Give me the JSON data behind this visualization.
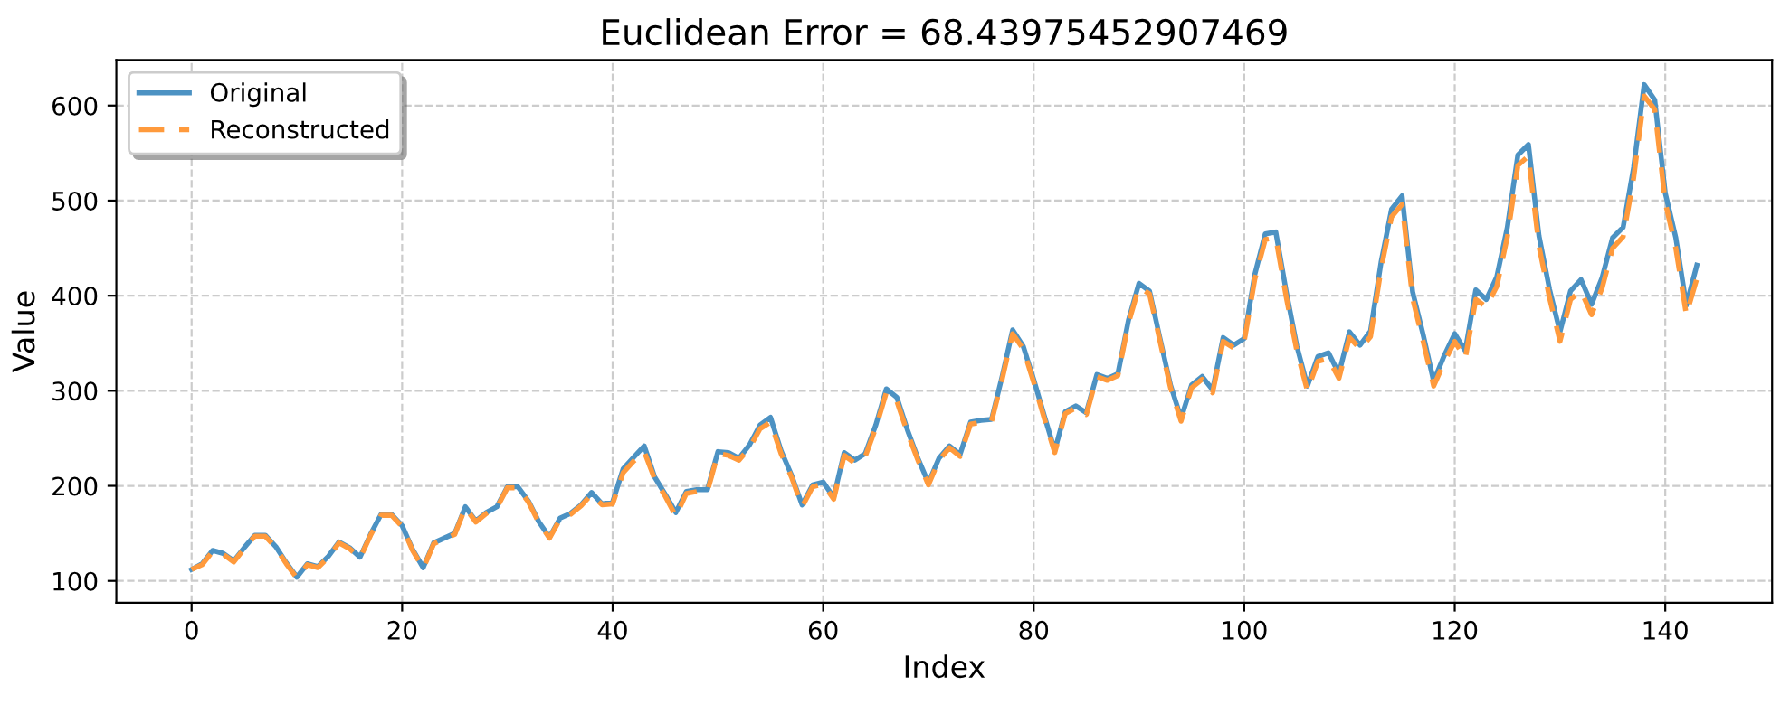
{
  "chart_data": {
    "type": "line",
    "title": "Euclidean Error = 68.43975452907469",
    "xlabel": "Index",
    "ylabel": "Value",
    "x": [
      0,
      1,
      2,
      3,
      4,
      5,
      6,
      7,
      8,
      9,
      10,
      11,
      12,
      13,
      14,
      15,
      16,
      17,
      18,
      19,
      20,
      21,
      22,
      23,
      24,
      25,
      26,
      27,
      28,
      29,
      30,
      31,
      32,
      33,
      34,
      35,
      36,
      37,
      38,
      39,
      40,
      41,
      42,
      43,
      44,
      45,
      46,
      47,
      48,
      49,
      50,
      51,
      52,
      53,
      54,
      55,
      56,
      57,
      58,
      59,
      60,
      61,
      62,
      63,
      64,
      65,
      66,
      67,
      68,
      69,
      70,
      71,
      72,
      73,
      74,
      75,
      76,
      77,
      78,
      79,
      80,
      81,
      82,
      83,
      84,
      85,
      86,
      87,
      88,
      89,
      90,
      91,
      92,
      93,
      94,
      95,
      96,
      97,
      98,
      99,
      100,
      101,
      102,
      103,
      104,
      105,
      106,
      107,
      108,
      109,
      110,
      111,
      112,
      113,
      114,
      115,
      116,
      117,
      118,
      119,
      120,
      121,
      122,
      123,
      124,
      125,
      126,
      127,
      128,
      129,
      130,
      131,
      132,
      133,
      134,
      135,
      136,
      137,
      138,
      139,
      140,
      141,
      142,
      143
    ],
    "series": [
      {
        "name": "Original",
        "color": "#4c92c3",
        "line_style": "solid",
        "values": [
          112,
          118,
          132,
          129,
          121,
          135,
          148,
          148,
          136,
          119,
          104,
          118,
          115,
          126,
          141,
          135,
          125,
          149,
          170,
          170,
          158,
          133,
          114,
          140,
          145,
          150,
          178,
          163,
          172,
          178,
          199,
          199,
          184,
          162,
          146,
          166,
          171,
          180,
          193,
          181,
          183,
          218,
          230,
          242,
          209,
          191,
          172,
          194,
          196,
          196,
          236,
          235,
          229,
          243,
          264,
          272,
          237,
          211,
          180,
          201,
          204,
          188,
          235,
          227,
          234,
          264,
          302,
          293,
          259,
          229,
          203,
          229,
          242,
          233,
          267,
          269,
          270,
          315,
          364,
          347,
          312,
          274,
          237,
          278,
          284,
          277,
          317,
          313,
          318,
          374,
          413,
          405,
          355,
          306,
          271,
          306,
          315,
          301,
          356,
          348,
          355,
          422,
          465,
          467,
          404,
          347,
          305,
          336,
          340,
          318,
          362,
          348,
          363,
          435,
          491,
          505,
          404,
          359,
          310,
          337,
          360,
          342,
          406,
          396,
          420,
          472,
          548,
          559,
          463,
          407,
          362,
          405,
          417,
          391,
          419,
          461,
          472,
          535,
          622,
          606,
          508,
          461,
          390,
          432
        ]
      },
      {
        "name": "Reconstructed",
        "color": "#ff9a3c",
        "line_style": "dashed",
        "values": [
          112,
          117,
          131,
          128,
          120,
          134,
          147,
          147,
          135,
          118,
          103,
          117,
          114,
          125,
          140,
          134,
          124,
          148,
          169,
          169,
          157,
          132,
          113,
          139,
          144,
          149,
          177,
          162,
          171,
          177,
          198,
          198,
          183,
          161,
          145,
          165,
          170,
          179,
          191,
          180,
          181,
          214,
          226,
          236,
          207,
          189,
          168,
          192,
          194,
          194,
          234,
          232,
          227,
          240,
          260,
          267,
          234,
          209,
          178,
          199,
          202,
          186,
          232,
          224,
          231,
          261,
          298,
          289,
          256,
          227,
          201,
          227,
          240,
          231,
          265,
          267,
          268,
          312,
          360,
          344,
          309,
          271,
          235,
          276,
          282,
          275,
          315,
          311,
          316,
          371,
          409,
          402,
          352,
          303,
          268,
          303,
          312,
          298,
          352,
          345,
          352,
          417,
          459,
          461,
          398,
          342,
          300,
          331,
          334,
          313,
          356,
          344,
          357,
          428,
          483,
          496,
          397,
          352,
          305,
          330,
          352,
          334,
          396,
          388,
          410,
          462,
          537,
          547,
          452,
          398,
          352,
          396,
          405,
          380,
          408,
          450,
          462,
          524,
          610,
          596,
          498,
          450,
          380,
          418
        ]
      }
    ],
    "xlim": [
      -7.15,
      150.15
    ],
    "ylim": [
      77,
      648
    ],
    "xticks": [
      0,
      20,
      40,
      60,
      80,
      100,
      120,
      140
    ],
    "yticks": [
      100,
      200,
      300,
      400,
      500,
      600
    ],
    "grid": true,
    "legend": "top left"
  }
}
